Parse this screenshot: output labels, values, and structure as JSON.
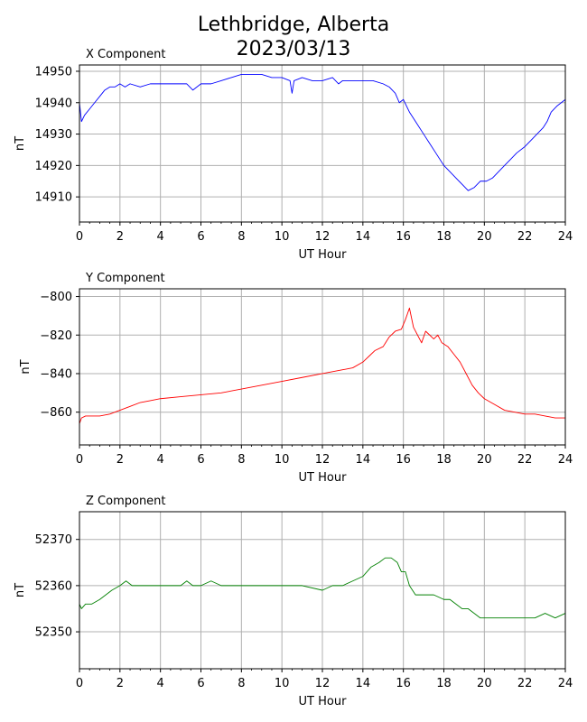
{
  "title_line1": "Lethbridge, Alberta",
  "title_line2": "2023/03/13",
  "chart_data": [
    {
      "type": "line",
      "title": "X Component",
      "xlabel": "UT Hour",
      "ylabel": "nT",
      "xlim": [
        0,
        24
      ],
      "ylim": [
        14902,
        14952
      ],
      "xticks": [
        0,
        2,
        4,
        6,
        8,
        10,
        12,
        14,
        16,
        18,
        20,
        22,
        24
      ],
      "yticks": [
        14910,
        14920,
        14930,
        14940,
        14950
      ],
      "grid": true,
      "color": "#0000ff",
      "series": [
        {
          "x": [
            0,
            0.1,
            0.25,
            0.5,
            0.75,
            1.0,
            1.25,
            1.5,
            1.75,
            2.0,
            2.25,
            2.5,
            3.0,
            3.5,
            4.0,
            4.5,
            5.0,
            5.3,
            5.6,
            6.0,
            6.5,
            7.0,
            7.5,
            8.0,
            8.5,
            9.0,
            9.5,
            10.0,
            10.4,
            10.5,
            10.6,
            11.0,
            11.5,
            12.0,
            12.5,
            12.8,
            13.0,
            13.5,
            14.0,
            14.5,
            15.0,
            15.3,
            15.6,
            15.8,
            16.0,
            16.3,
            16.6,
            17.0,
            17.3,
            17.6,
            18.0,
            18.3,
            18.6,
            18.9,
            19.2,
            19.5,
            19.8,
            20.1,
            20.4,
            20.7,
            21.0,
            21.3,
            21.6,
            22.0,
            22.3,
            22.6,
            22.9,
            23.1,
            23.3,
            23.6,
            23.8,
            24.0
          ],
          "y": [
            14940,
            14934,
            14936,
            14938,
            14940,
            14942,
            14944,
            14945,
            14945,
            14946,
            14945,
            14946,
            14945,
            14946,
            14946,
            14946,
            14946,
            14946,
            14944,
            14946,
            14946,
            14947,
            14948,
            14949,
            14949,
            14949,
            14948,
            14948,
            14947,
            14943,
            14947,
            14948,
            14947,
            14947,
            14948,
            14946,
            14947,
            14947,
            14947,
            14947,
            14946,
            14945,
            14943,
            14940,
            14941,
            14937,
            14934,
            14930,
            14927,
            14924,
            14920,
            14918,
            14916,
            14914,
            14912,
            14913,
            14915,
            14915,
            14916,
            14918,
            14920,
            14922,
            14924,
            14926,
            14928,
            14930,
            14932,
            14934,
            14937,
            14939,
            14940,
            14941
          ]
        }
      ]
    },
    {
      "type": "line",
      "title": "Y Component",
      "xlabel": "UT Hour",
      "ylabel": "nT",
      "xlim": [
        0,
        24
      ],
      "ylim": [
        -877,
        -796
      ],
      "xticks": [
        0,
        2,
        4,
        6,
        8,
        10,
        12,
        14,
        16,
        18,
        20,
        22,
        24
      ],
      "yticks": [
        -800,
        -820,
        -840,
        -860
      ],
      "grid": true,
      "color": "#ff0000",
      "series": [
        {
          "x": [
            0,
            0.1,
            0.3,
            0.6,
            1.0,
            1.5,
            2.0,
            2.5,
            3.0,
            3.5,
            4.0,
            5.0,
            6.0,
            7.0,
            8.0,
            9.0,
            10.0,
            11.0,
            12.0,
            13.0,
            13.5,
            14.0,
            14.3,
            14.6,
            15.0,
            15.3,
            15.6,
            15.9,
            16.1,
            16.3,
            16.5,
            16.7,
            16.9,
            17.1,
            17.3,
            17.5,
            17.7,
            17.9,
            18.2,
            18.5,
            18.8,
            19.1,
            19.4,
            19.7,
            20.0,
            20.5,
            21.0,
            21.5,
            22.0,
            22.5,
            23.0,
            23.5,
            24.0
          ],
          "y": [
            -866,
            -863,
            -862,
            -862,
            -862,
            -861,
            -859,
            -857,
            -855,
            -854,
            -853,
            -852,
            -851,
            -850,
            -848,
            -846,
            -844,
            -842,
            -840,
            -838,
            -837,
            -834,
            -831,
            -828,
            -826,
            -821,
            -818,
            -817,
            -812,
            -806,
            -816,
            -820,
            -824,
            -818,
            -820,
            -822,
            -820,
            -824,
            -826,
            -830,
            -834,
            -840,
            -846,
            -850,
            -853,
            -856,
            -859,
            -860,
            -861,
            -861,
            -862,
            -863,
            -863
          ]
        }
      ]
    },
    {
      "type": "line",
      "title": "Z Component",
      "xlabel": "UT Hour",
      "ylabel": "nT",
      "xlim": [
        0,
        24
      ],
      "ylim": [
        52342,
        52376
      ],
      "xticks": [
        0,
        2,
        4,
        6,
        8,
        10,
        12,
        14,
        16,
        18,
        20,
        22,
        24
      ],
      "yticks": [
        52350,
        52360,
        52370
      ],
      "grid": true,
      "color": "#008000",
      "series": [
        {
          "x": [
            0,
            0.1,
            0.3,
            0.6,
            1.0,
            1.3,
            1.6,
            2.0,
            2.3,
            2.6,
            3.0,
            3.5,
            4.0,
            4.5,
            5.0,
            5.3,
            5.6,
            6.0,
            6.5,
            7.0,
            7.5,
            8.0,
            9.0,
            10.0,
            11.0,
            12.0,
            12.5,
            13.0,
            13.5,
            14.0,
            14.4,
            14.8,
            15.1,
            15.4,
            15.7,
            15.9,
            16.1,
            16.3,
            16.6,
            17.0,
            17.5,
            18.0,
            18.3,
            18.6,
            18.9,
            19.2,
            19.5,
            19.8,
            20.1,
            20.5,
            21.0,
            21.5,
            22.0,
            22.5,
            23.0,
            23.5,
            24.0
          ],
          "y": [
            52356,
            52355,
            52356,
            52356,
            52357,
            52358,
            52359,
            52360,
            52361,
            52360,
            52360,
            52360,
            52360,
            52360,
            52360,
            52361,
            52360,
            52360,
            52361,
            52360,
            52360,
            52360,
            52360,
            52360,
            52360,
            52359,
            52360,
            52360,
            52361,
            52362,
            52364,
            52365,
            52366,
            52366,
            52365,
            52363,
            52363,
            52360,
            52358,
            52358,
            52358,
            52357,
            52357,
            52356,
            52355,
            52355,
            52354,
            52353,
            52353,
            52353,
            52353,
            52353,
            52353,
            52353,
            52354,
            52353,
            52354
          ]
        }
      ]
    }
  ]
}
